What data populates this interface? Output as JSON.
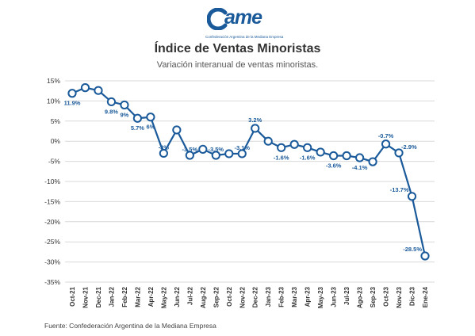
{
  "header": {
    "logo_text": "ame",
    "logo_subtitle": "Confederación Argentina de la Mediana Empresa",
    "title": "Índice de Ventas Minoristas",
    "subtitle": "Variación interanual de ventas minoristas."
  },
  "footer": {
    "source": "Fuente: Confederación Argentina de la Mediana Empresa"
  },
  "colors": {
    "series": "#1a5a9a",
    "grid": "#d9d9d9",
    "marker_fill": "#ffffff"
  },
  "chart_data": {
    "type": "line",
    "title": "Índice de Ventas Minoristas",
    "subtitle": "Variación interanual de ventas minoristas.",
    "xlabel": "",
    "ylabel": "",
    "ylim": [
      -35,
      15
    ],
    "yticks": [
      15,
      10,
      5,
      0,
      -5,
      -10,
      -15,
      -20,
      -25,
      -30,
      -35
    ],
    "ytick_labels": [
      "15%",
      "10%",
      "5%",
      "0%",
      "-5%",
      "-10%",
      "-15%",
      "-20%",
      "-25%",
      "-30%",
      "-35%"
    ],
    "grid": true,
    "legend": "none",
    "x": [
      "Oct-21",
      "Nov-21",
      "Dec-21",
      "Jan-22",
      "Feb-22",
      "Mar-22",
      "Apr-22",
      "May-22",
      "Jun-22",
      "Jul-22",
      "Aug-22",
      "Sep-22",
      "Oct-22",
      "Nov-22",
      "Dec-22",
      "Jan-23",
      "Feb-23",
      "Mar-23",
      "Apr-23",
      "May-23",
      "Jun-23",
      "Jul-23",
      "Ago-23",
      "Sep-23",
      "Oct-23",
      "Nov-23",
      "Dic-23",
      "Ene-24"
    ],
    "series": [
      {
        "values": [
          11.9,
          13.3,
          12.6,
          9.8,
          9.0,
          5.7,
          6.0,
          -3.0,
          2.8,
          -3.5,
          -2.0,
          -3.5,
          -3.1,
          -3.1,
          3.2,
          0.0,
          -1.6,
          -0.8,
          -1.6,
          -2.7,
          -3.6,
          -3.6,
          -4.1,
          -5.1,
          -0.7,
          -2.9,
          -13.7,
          -28.5
        ]
      }
    ],
    "data_labels": [
      {
        "index": 0,
        "text": "11.9%"
      },
      {
        "index": 3,
        "text": "9.8%"
      },
      {
        "index": 4,
        "text": "9%"
      },
      {
        "index": 5,
        "text": "5.7%"
      },
      {
        "index": 6,
        "text": "6%"
      },
      {
        "index": 7,
        "text": "-3%"
      },
      {
        "index": 9,
        "text": "-3.5%"
      },
      {
        "index": 11,
        "text": "-3.5%"
      },
      {
        "index": 13,
        "text": "-3.1%"
      },
      {
        "index": 14,
        "text": "3.2%"
      },
      {
        "index": 16,
        "text": "-1.6%"
      },
      {
        "index": 18,
        "text": "-1.6%"
      },
      {
        "index": 20,
        "text": "-3.6%"
      },
      {
        "index": 22,
        "text": "-4.1%"
      },
      {
        "index": 24,
        "text": "-0.7%"
      },
      {
        "index": 25,
        "text": "-2.9%"
      },
      {
        "index": 26,
        "text": "-13.7%"
      },
      {
        "index": 27,
        "text": "-28.5%"
      }
    ]
  }
}
